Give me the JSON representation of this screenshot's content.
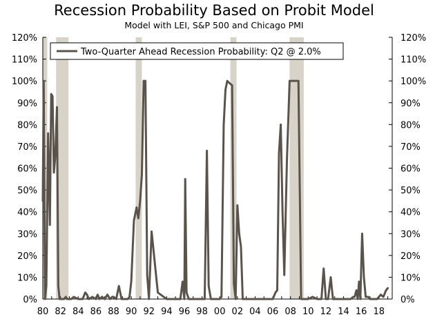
{
  "chart_data": {
    "type": "line",
    "title": "Recession Probability Based on Probit Model",
    "subtitle": "Model with LEI, S&P 500 and Chicago PMI",
    "xlabel": "",
    "ylabel": "",
    "ylim": [
      0,
      120
    ],
    "xlim": [
      1980,
      2019.5
    ],
    "y_ticks": [
      "0%",
      "10%",
      "20%",
      "30%",
      "40%",
      "50%",
      "60%",
      "70%",
      "80%",
      "90%",
      "100%",
      "110%",
      "120%"
    ],
    "x_ticks": [
      "80",
      "82",
      "84",
      "86",
      "88",
      "90",
      "92",
      "94",
      "96",
      "98",
      "00",
      "02",
      "04",
      "06",
      "08",
      "10",
      "12",
      "14",
      "16",
      "18"
    ],
    "legend": {
      "label": "Two-Quarter Ahead Recession Probability: Q2 @ 2.0%",
      "position": "top-left"
    },
    "recessions": [
      [
        1980.0,
        1980.5
      ],
      [
        1981.5,
        1982.9
      ],
      [
        1990.5,
        1991.2
      ],
      [
        2001.2,
        2001.9
      ],
      [
        2007.9,
        2009.5
      ]
    ],
    "series": [
      {
        "name": "Two-Quarter Ahead Recession Probability: Q2 @ 2.0%",
        "color": "#5a534c",
        "x": [
          1980.0,
          1980.1,
          1980.25,
          1980.4,
          1980.6,
          1980.8,
          1980.95,
          1981.1,
          1981.25,
          1981.4,
          1981.6,
          1981.75,
          1981.9,
          1982.1,
          1982.25,
          1982.4,
          1982.6,
          1982.75,
          1982.9,
          1983.0,
          1983.2,
          1983.5,
          1984.0,
          1984.5,
          1984.8,
          1985.0,
          1985.2,
          1985.6,
          1986.0,
          1986.2,
          1986.4,
          1986.7,
          1987.0,
          1987.3,
          1987.6,
          1987.85,
          1988.0,
          1988.3,
          1988.6,
          1988.9,
          1989.2,
          1989.4,
          1989.6,
          1989.8,
          1990.0,
          1990.3,
          1990.6,
          1990.8,
          1991.0,
          1991.2,
          1991.4,
          1991.6,
          1991.8,
          1992.0,
          1992.3,
          1993.0,
          1994.0,
          1995.0,
          1995.3,
          1995.55,
          1995.8,
          1996.0,
          1996.1,
          1996.25,
          1996.5,
          1997.0,
          1997.5,
          1998.0,
          1998.3,
          1998.55,
          1998.75,
          1999.0,
          1999.5,
          2000.0,
          2000.2,
          2000.45,
          2000.65,
          2000.85,
          2001.1,
          2001.4,
          2001.6,
          2001.8,
          2002.0,
          2002.2,
          2002.4,
          2002.6,
          2003.0,
          2003.2,
          2003.4,
          2003.7,
          2004.0,
          2005.0,
          2005.5,
          2006.0,
          2006.3,
          2006.5,
          2006.7,
          2006.9,
          2007.1,
          2007.3,
          2007.6,
          2007.9,
          2008.1,
          2008.3,
          2008.6,
          2008.9,
          2009.2,
          2009.45,
          2009.7,
          2010.0,
          2010.5,
          2011.0,
          2011.3,
          2011.5,
          2011.75,
          2012.0,
          2012.25,
          2012.55,
          2012.8,
          2013.0,
          2013.5,
          2014.0,
          2014.5,
          2014.8,
          2015.1,
          2015.25,
          2015.45,
          2015.6,
          2015.75,
          2015.9,
          2016.1,
          2016.3,
          2016.5,
          2016.8,
          2017.0,
          2017.5,
          2017.8,
          2018.0,
          2018.2,
          2018.5,
          2018.8,
          2019.0,
          2019.25
        ]
      }
    ]
  }
}
